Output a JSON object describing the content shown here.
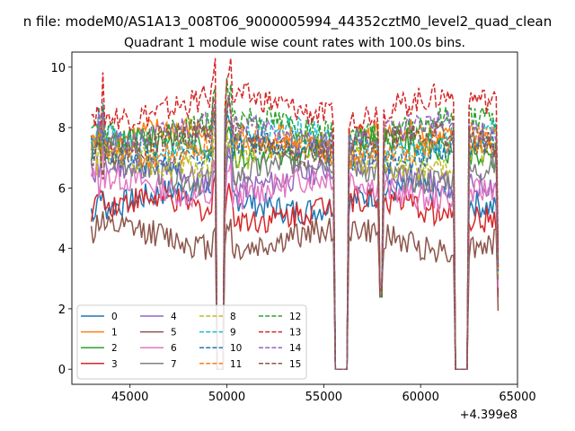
{
  "figure": {
    "suptitle": "n file: modeM0/AS1A13_008T06_9000005994_44352cztM0_level2_quad_clean",
    "title": "Quadrant 1 module wise count rates with 100.0s bins."
  },
  "chart_data": {
    "type": "line",
    "title": "Quadrant 1 module wise count rates with 100.0s bins.",
    "xlabel": "",
    "ylabel": "",
    "x_offset_label": "+4.399e8",
    "xlim": [
      42000,
      65000
    ],
    "ylim": [
      -0.5,
      10.5
    ],
    "x_ticks": [
      45000,
      50000,
      55000,
      60000,
      65000
    ],
    "x_tick_labels": [
      "45000",
      "50000",
      "55000",
      "60000",
      "65000"
    ],
    "y_ticks": [
      0,
      2,
      4,
      6,
      8,
      10
    ],
    "y_tick_labels": [
      "0",
      "2",
      "4",
      "6",
      "8",
      "10"
    ],
    "grid": false,
    "legend_position": "lower-left",
    "legend_columns": 4,
    "x_range": [
      43000,
      64000
    ],
    "bin_width": 100,
    "gaps": [
      {
        "from": 49500,
        "to": 49800,
        "type": "dip",
        "min": 0.0
      },
      {
        "from": 55600,
        "to": 56200,
        "type": "zero",
        "min": 0.0
      },
      {
        "from": 57900,
        "to": 58000,
        "type": "dip",
        "min": 2.4
      },
      {
        "from": 61800,
        "to": 62400,
        "type": "zero",
        "min": 0.0
      }
    ],
    "series": [
      {
        "name": "0",
        "color": "#1f77b4",
        "dash": "solid",
        "level": 5.6
      },
      {
        "name": "1",
        "color": "#ff7f0e",
        "dash": "solid",
        "level": 7.6
      },
      {
        "name": "2",
        "color": "#2ca02c",
        "dash": "solid",
        "level": 7.3
      },
      {
        "name": "3",
        "color": "#d62728",
        "dash": "solid",
        "level": 5.3
      },
      {
        "name": "4",
        "color": "#9467bd",
        "dash": "solid",
        "level": 6.4
      },
      {
        "name": "5",
        "color": "#8c564b",
        "dash": "solid",
        "level": 4.3
      },
      {
        "name": "6",
        "color": "#e377c2",
        "dash": "solid",
        "level": 6.0
      },
      {
        "name": "7",
        "color": "#7f7f7f",
        "dash": "solid",
        "level": 6.6
      },
      {
        "name": "8",
        "color": "#bcbd22",
        "dash": "dashed",
        "level": 7.0
      },
      {
        "name": "9",
        "color": "#17becf",
        "dash": "dashed",
        "level": 7.6
      },
      {
        "name": "10",
        "color": "#1f77b4",
        "dash": "dashed",
        "level": 7.2
      },
      {
        "name": "11",
        "color": "#ff7f0e",
        "dash": "dashed",
        "level": 7.4
      },
      {
        "name": "12",
        "color": "#2ca02c",
        "dash": "dashed",
        "level": 8.0
      },
      {
        "name": "13",
        "color": "#d62728",
        "dash": "dashed",
        "level": 8.7
      },
      {
        "name": "14",
        "color": "#9467bd",
        "dash": "dashed",
        "level": 7.8
      },
      {
        "name": "15",
        "color": "#8c564b",
        "dash": "dashed",
        "level": 7.5
      }
    ]
  }
}
